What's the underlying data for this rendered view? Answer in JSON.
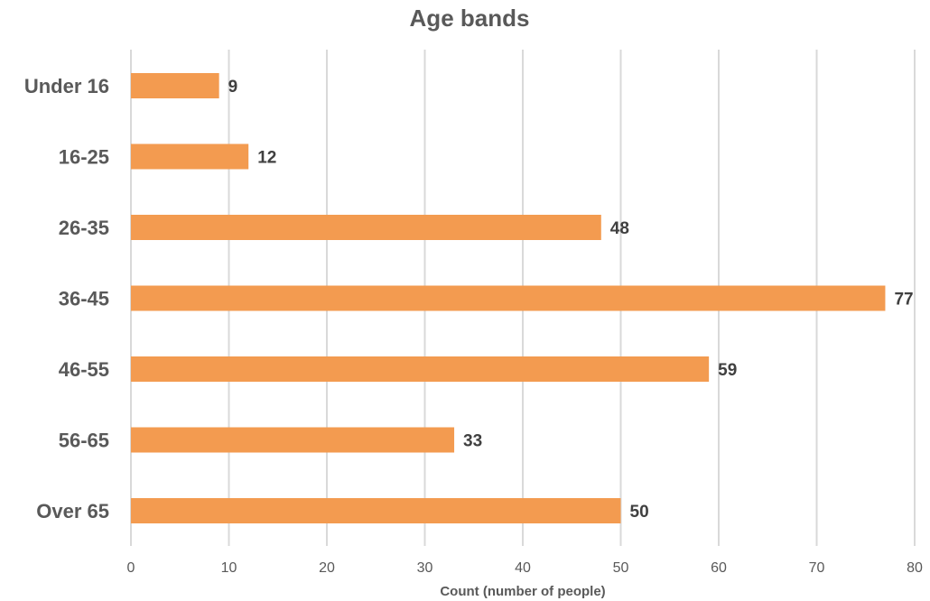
{
  "chart_data": {
    "type": "bar",
    "orientation": "horizontal",
    "title": "Age bands",
    "xlabel": "Count (number of people)",
    "ylabel": "",
    "categories": [
      "Under 16",
      "16-25",
      "26-35",
      "36-45",
      "46-55",
      "56-65",
      "Over 65"
    ],
    "values": [
      9,
      12,
      48,
      77,
      59,
      33,
      50
    ],
    "data_labels": [
      "9",
      "12",
      "48",
      "77",
      "59",
      "33",
      "50"
    ],
    "xlim": [
      0,
      80
    ],
    "x_ticks": [
      0,
      10,
      20,
      30,
      40,
      50,
      60,
      70,
      80
    ],
    "grid": "vertical",
    "legend": "none",
    "bar_color": "#F39B50",
    "gridline_color": "#D9D9D9",
    "text_color": "#595959"
  }
}
